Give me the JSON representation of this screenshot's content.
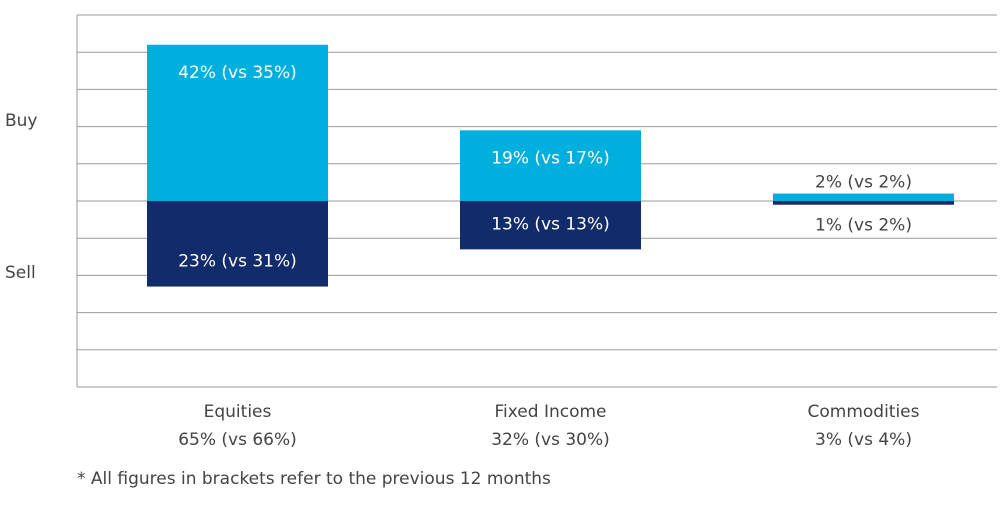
{
  "chart_data": {
    "type": "diverging-bar",
    "categories": [
      "Equities",
      "Fixed Income",
      "Commodities"
    ],
    "category_subtitles": [
      "65% (vs 66%)",
      "32% (vs 30%)",
      "3% (vs 4%)"
    ],
    "series": [
      {
        "name": "Buy",
        "color": "#00afdd",
        "values": [
          42,
          19,
          2
        ],
        "value_labels": [
          "42% (vs 35%)",
          "19% (vs 17%)",
          "2% (vs 2%)"
        ]
      },
      {
        "name": "Sell",
        "color": "#112b6b",
        "values": [
          -23,
          -13,
          -1
        ],
        "value_labels": [
          "23% (vs 31%)",
          "13% (vs 13%)",
          "1% (vs 2%)"
        ]
      }
    ],
    "ylim": [
      -50,
      50
    ],
    "yticks": [
      -50,
      -40,
      -30,
      -20,
      -10,
      0,
      10,
      20,
      30,
      40,
      50
    ],
    "grid": true,
    "footnote": "* All figures in brackets refer to the previous 12 months"
  }
}
